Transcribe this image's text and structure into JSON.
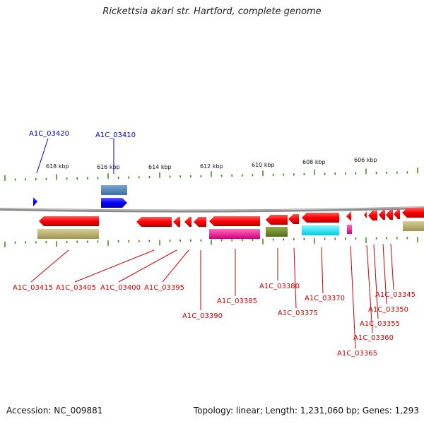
{
  "title": "Rickettsia akari str. Hartford, complete genome",
  "footer": {
    "accession": "Accession: NC_009881",
    "topology": "Topology: linear; Length: 1,231,060 bp; Genes: 1,293"
  },
  "colors": {
    "backbone": "#888888",
    "forward_gene": "#0000ff",
    "reverse_gene": "#ff0000",
    "tick": "#2e7d0f",
    "forward_label": "#0000cc",
    "reverse_label": "#cc0000"
  },
  "scale_labels": [
    "618 kbp",
    "616 kbp",
    "614 kbp",
    "612 kbp",
    "610 kbp",
    "608 kbp",
    "606 kbp"
  ],
  "forward_genes": [
    {
      "label": "A1C_03420"
    },
    {
      "label": "A1C_03410"
    }
  ],
  "reverse_genes": [
    {
      "label": "A1C_03415"
    },
    {
      "label": "A1C_03405"
    },
    {
      "label": "A1C_03400"
    },
    {
      "label": "A1C_03395"
    },
    {
      "label": "A1C_03390"
    },
    {
      "label": "A1C_03385"
    },
    {
      "label": "A1C_03380"
    },
    {
      "label": "A1C_03375"
    },
    {
      "label": "A1C_03370"
    },
    {
      "label": "A1C_03365"
    },
    {
      "label": "A1C_03360"
    },
    {
      "label": "A1C_03355"
    },
    {
      "label": "A1C_03350"
    },
    {
      "label": "A1C_03345"
    }
  ]
}
